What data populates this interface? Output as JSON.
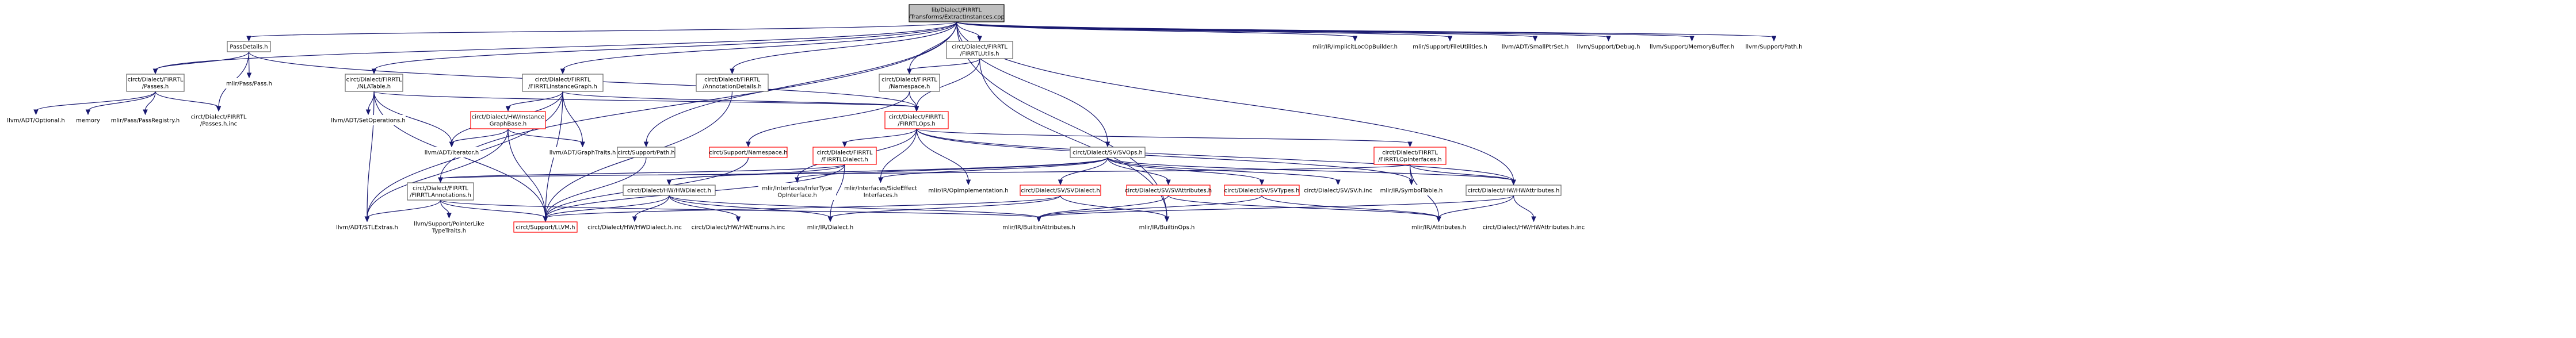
{
  "title": "lib/Dialect/FIRRTL/Transforms/ExtractInstances.cpp",
  "colors": {
    "edge": "#191970",
    "node_border": "#666666",
    "highlight_border": "#ff0000",
    "root_fill": "#bfbfbf",
    "background": "#ffffff"
  },
  "nodes": [
    {
      "id": "root",
      "lines": [
        "lib/Dialect/FIRRTL",
        "/Transforms/ExtractInstances.cpp"
      ],
      "style": "root"
    },
    {
      "id": "passdetails",
      "lines": [
        "PassDetails.h"
      ]
    },
    {
      "id": "firrtl_passes",
      "lines": [
        "circt/Dialect/FIRRTL",
        "/Passes.h"
      ]
    },
    {
      "id": "mlir_pass",
      "lines": [
        "mlir/Pass/Pass.h"
      ],
      "style": "noframe"
    },
    {
      "id": "llvm_optional",
      "lines": [
        "llvm/ADT/Optional.h"
      ],
      "style": "noframe"
    },
    {
      "id": "memory",
      "lines": [
        "memory"
      ],
      "style": "noframe"
    },
    {
      "id": "pass_registry",
      "lines": [
        "mlir/Pass/PassRegistry.h"
      ],
      "style": "noframe"
    },
    {
      "id": "passes_inc",
      "lines": [
        "circt/Dialect/FIRRTL",
        "/Passes.h.inc"
      ],
      "style": "noframe"
    },
    {
      "id": "nla_table",
      "lines": [
        "circt/Dialect/FIRRTL",
        "/NLATable.h"
      ]
    },
    {
      "id": "set_operations",
      "lines": [
        "llvm/ADT/SetOperations.h"
      ],
      "style": "noframe"
    },
    {
      "id": "instance_graph",
      "lines": [
        "circt/Dialect/FIRRTL",
        "/FIRRTLInstanceGraph.h"
      ]
    },
    {
      "id": "hw_instance_graph_base",
      "lines": [
        "circt/Dialect/HW/Instance",
        "GraphBase.h"
      ],
      "style": "red"
    },
    {
      "id": "llvm_iterator",
      "lines": [
        "llvm/ADT/iterator.h"
      ],
      "style": "noframe"
    },
    {
      "id": "graph_traits",
      "lines": [
        "llvm/ADT/GraphTraits.h"
      ],
      "style": "noframe"
    },
    {
      "id": "annotation_details",
      "lines": [
        "circt/Dialect/FIRRTL",
        "/AnnotationDetails.h"
      ]
    },
    {
      "id": "firrtl_utils",
      "lines": [
        "circt/Dialect/FIRRTL",
        "/FIRRTLUtils.h"
      ]
    },
    {
      "id": "firrtl_namespace",
      "lines": [
        "circt/Dialect/FIRRTL",
        "/Namespace.h"
      ]
    },
    {
      "id": "firrtl_ops",
      "lines": [
        "circt/Dialect/FIRRTL",
        "/FIRRTLOps.h"
      ],
      "style": "red"
    },
    {
      "id": "support_path",
      "lines": [
        "circt/Support/Path.h"
      ]
    },
    {
      "id": "support_namespace",
      "lines": [
        "circt/Support/Namespace.h"
      ],
      "style": "red"
    },
    {
      "id": "firrtl_dialect",
      "lines": [
        "circt/Dialect/FIRRTL",
        "/FIRRTLDialect.h"
      ],
      "style": "red"
    },
    {
      "id": "sv_ops",
      "lines": [
        "circt/Dialect/SV/SVOps.h"
      ]
    },
    {
      "id": "firrtl_op_interfaces",
      "lines": [
        "circt/Dialect/FIRRTL",
        "/FIRRTLOpInterfaces.h"
      ],
      "style": "red"
    },
    {
      "id": "firrtl_annotations",
      "lines": [
        "circt/Dialect/FIRRTL",
        "/FIRRTLAnnotations.h"
      ]
    },
    {
      "id": "hw_hw_dialect",
      "lines": [
        "circt/Dialect/HW/HWDialect.h"
      ]
    },
    {
      "id": "infer_type_op_interface",
      "lines": [
        "mlir/Interfaces/InferType",
        "OpInterface.h"
      ],
      "style": "noframe"
    },
    {
      "id": "side_effect_interfaces",
      "lines": [
        "mlir/Interfaces/SideEffect",
        "Interfaces.h"
      ],
      "style": "noframe"
    },
    {
      "id": "op_implementation",
      "lines": [
        "mlir/IR/OpImplementation.h"
      ],
      "style": "noframe"
    },
    {
      "id": "sv_dialect",
      "lines": [
        "circt/Dialect/SV/SVDialect.h"
      ],
      "style": "red"
    },
    {
      "id": "sv_attributes",
      "lines": [
        "circt/Dialect/SV/SVAttributes.h"
      ],
      "style": "red"
    },
    {
      "id": "sv_types",
      "lines": [
        "circt/Dialect/SV/SVTypes.h"
      ],
      "style": "red"
    },
    {
      "id": "sv_inc",
      "lines": [
        "circt/Dialect/SV/SV.h.inc"
      ],
      "style": "noframe"
    },
    {
      "id": "symbol_table",
      "lines": [
        "mlir/IR/SymbolTable.h"
      ],
      "style": "noframe"
    },
    {
      "id": "hw_attributes",
      "lines": [
        "circt/Dialect/HW/HWAttributes.h"
      ]
    },
    {
      "id": "stl_extras",
      "lines": [
        "llvm/ADT/STLExtras.h"
      ],
      "style": "noframe"
    },
    {
      "id": "pointer_like_type_traits",
      "lines": [
        "llvm/Support/PointerLike",
        "TypeTraits.h"
      ],
      "style": "noframe"
    },
    {
      "id": "support_llvm",
      "lines": [
        "circt/Support/LLVM.h"
      ],
      "style": "red"
    },
    {
      "id": "hw_dialect_inc",
      "lines": [
        "circt/Dialect/HW/HWDialect.h.inc"
      ],
      "style": "noframe"
    },
    {
      "id": "hw_enums_inc",
      "lines": [
        "circt/Dialect/HW/HWEnums.h.inc"
      ],
      "style": "noframe"
    },
    {
      "id": "ir_dialect",
      "lines": [
        "mlir/IR/Dialect.h"
      ],
      "style": "noframe"
    },
    {
      "id": "builtin_attributes",
      "lines": [
        "mlir/IR/BuiltinAttributes.h"
      ],
      "style": "noframe"
    },
    {
      "id": "builtin_ops",
      "lines": [
        "mlir/IR/BuiltinOps.h"
      ],
      "style": "noframe"
    },
    {
      "id": "ir_attributes",
      "lines": [
        "mlir/IR/Attributes.h"
      ],
      "style": "noframe"
    },
    {
      "id": "hw_attributes_inc",
      "lines": [
        "circt/Dialect/HW/HWAttributes.h.inc"
      ],
      "style": "noframe"
    },
    {
      "id": "implicit_loc_op_builder",
      "lines": [
        "mlir/IR/ImplicitLocOpBuilder.h"
      ],
      "style": "noframe"
    },
    {
      "id": "file_utilities",
      "lines": [
        "mlir/Support/FileUtilities.h"
      ],
      "style": "noframe"
    },
    {
      "id": "small_ptr_set",
      "lines": [
        "llvm/ADT/SmallPtrSet.h"
      ],
      "style": "noframe"
    },
    {
      "id": "llvm_debug",
      "lines": [
        "llvm/Support/Debug.h"
      ],
      "style": "noframe"
    },
    {
      "id": "memory_buffer",
      "lines": [
        "llvm/Support/MemoryBuffer.h"
      ],
      "style": "noframe"
    },
    {
      "id": "llvm_path",
      "lines": [
        "llvm/Support/Path.h"
      ],
      "style": "noframe"
    }
  ],
  "edges": [
    [
      "root",
      "passdetails"
    ],
    [
      "root",
      "firrtl_passes"
    ],
    [
      "root",
      "nla_table"
    ],
    [
      "root",
      "instance_graph"
    ],
    [
      "root",
      "annotation_details"
    ],
    [
      "root",
      "firrtl_utils"
    ],
    [
      "root",
      "firrtl_namespace"
    ],
    [
      "root",
      "support_path"
    ],
    [
      "root",
      "sv_ops"
    ],
    [
      "root",
      "firrtl_annotations"
    ],
    [
      "root",
      "hw_attributes"
    ],
    [
      "root",
      "builtin_ops"
    ],
    [
      "root",
      "implicit_loc_op_builder"
    ],
    [
      "root",
      "file_utilities"
    ],
    [
      "root",
      "small_ptr_set"
    ],
    [
      "root",
      "llvm_debug"
    ],
    [
      "root",
      "memory_buffer"
    ],
    [
      "root",
      "llvm_path"
    ],
    [
      "passdetails",
      "firrtl_passes"
    ],
    [
      "passdetails",
      "mlir_pass"
    ],
    [
      "passdetails",
      "passes_inc"
    ],
    [
      "passdetails",
      "firrtl_ops"
    ],
    [
      "firrtl_passes",
      "llvm_optional"
    ],
    [
      "firrtl_passes",
      "memory"
    ],
    [
      "firrtl_passes",
      "pass_registry"
    ],
    [
      "firrtl_passes",
      "passes_inc"
    ],
    [
      "nla_table",
      "set_operations"
    ],
    [
      "nla_table",
      "llvm_iterator"
    ],
    [
      "nla_table",
      "stl_extras"
    ],
    [
      "nla_table",
      "firrtl_ops"
    ],
    [
      "nla_table",
      "support_llvm"
    ],
    [
      "instance_graph",
      "hw_instance_graph_base"
    ],
    [
      "instance_graph",
      "llvm_iterator"
    ],
    [
      "instance_graph",
      "graph_traits"
    ],
    [
      "instance_graph",
      "firrtl_ops"
    ],
    [
      "instance_graph",
      "stl_extras"
    ],
    [
      "instance_graph",
      "support_llvm"
    ],
    [
      "hw_instance_graph_base",
      "llvm_iterator"
    ],
    [
      "hw_instance_graph_base",
      "graph_traits"
    ],
    [
      "hw_instance_graph_base",
      "support_llvm"
    ],
    [
      "hw_instance_graph_base",
      "stl_extras"
    ],
    [
      "annotation_details",
      "support_llvm"
    ],
    [
      "firrtl_utils",
      "firrtl_namespace"
    ],
    [
      "firrtl_utils",
      "firrtl_ops"
    ],
    [
      "firrtl_utils",
      "builtin_ops"
    ],
    [
      "firrtl_namespace",
      "firrtl_ops"
    ],
    [
      "firrtl_namespace",
      "support_namespace"
    ],
    [
      "support_path",
      "support_llvm"
    ],
    [
      "support_namespace",
      "support_llvm"
    ],
    [
      "firrtl_ops",
      "firrtl_dialect"
    ],
    [
      "firrtl_ops",
      "firrtl_op_interfaces"
    ],
    [
      "firrtl_ops",
      "infer_type_op_interface"
    ],
    [
      "firrtl_ops",
      "side_effect_interfaces"
    ],
    [
      "firrtl_ops",
      "op_implementation"
    ],
    [
      "firrtl_ops",
      "symbol_table"
    ],
    [
      "firrtl_ops",
      "hw_attributes"
    ],
    [
      "firrtl_dialect",
      "firrtl_annotations"
    ],
    [
      "firrtl_dialect",
      "hw_hw_dialect"
    ],
    [
      "firrtl_dialect",
      "support_llvm"
    ],
    [
      "firrtl_dialect",
      "ir_dialect"
    ],
    [
      "firrtl_op_interfaces",
      "firrtl_annotations"
    ],
    [
      "firrtl_op_interfaces",
      "symbol_table"
    ],
    [
      "firrtl_op_interfaces",
      "ir_attributes"
    ],
    [
      "firrtl_op_interfaces",
      "hw_attributes"
    ],
    [
      "sv_ops",
      "hw_hw_dialect"
    ],
    [
      "sv_ops",
      "sv_dialect"
    ],
    [
      "sv_ops",
      "sv_attributes"
    ],
    [
      "sv_ops",
      "sv_types"
    ],
    [
      "sv_ops",
      "sv_inc"
    ],
    [
      "sv_ops",
      "infer_type_op_interface"
    ],
    [
      "sv_ops",
      "side_effect_interfaces"
    ],
    [
      "sv_ops",
      "hw_attributes"
    ],
    [
      "firrtl_annotations",
      "stl_extras"
    ],
    [
      "firrtl_annotations",
      "pointer_like_type_traits"
    ],
    [
      "firrtl_annotations",
      "support_llvm"
    ],
    [
      "firrtl_annotations",
      "builtin_attributes"
    ],
    [
      "hw_hw_dialect",
      "support_llvm"
    ],
    [
      "hw_hw_dialect",
      "hw_dialect_inc"
    ],
    [
      "hw_hw_dialect",
      "hw_enums_inc"
    ],
    [
      "hw_hw_dialect",
      "ir_dialect"
    ],
    [
      "hw_hw_dialect",
      "builtin_attributes"
    ],
    [
      "sv_dialect",
      "support_llvm"
    ],
    [
      "sv_dialect",
      "ir_dialect"
    ],
    [
      "sv_dialect",
      "builtin_ops"
    ],
    [
      "sv_attributes",
      "builtin_attributes"
    ],
    [
      "sv_attributes",
      "ir_attributes"
    ],
    [
      "sv_types",
      "builtin_attributes"
    ],
    [
      "sv_types",
      "ir_attributes"
    ],
    [
      "hw_attributes",
      "builtin_attributes"
    ],
    [
      "hw_attributes",
      "ir_attributes"
    ],
    [
      "hw_attributes",
      "hw_attributes_inc"
    ]
  ]
}
